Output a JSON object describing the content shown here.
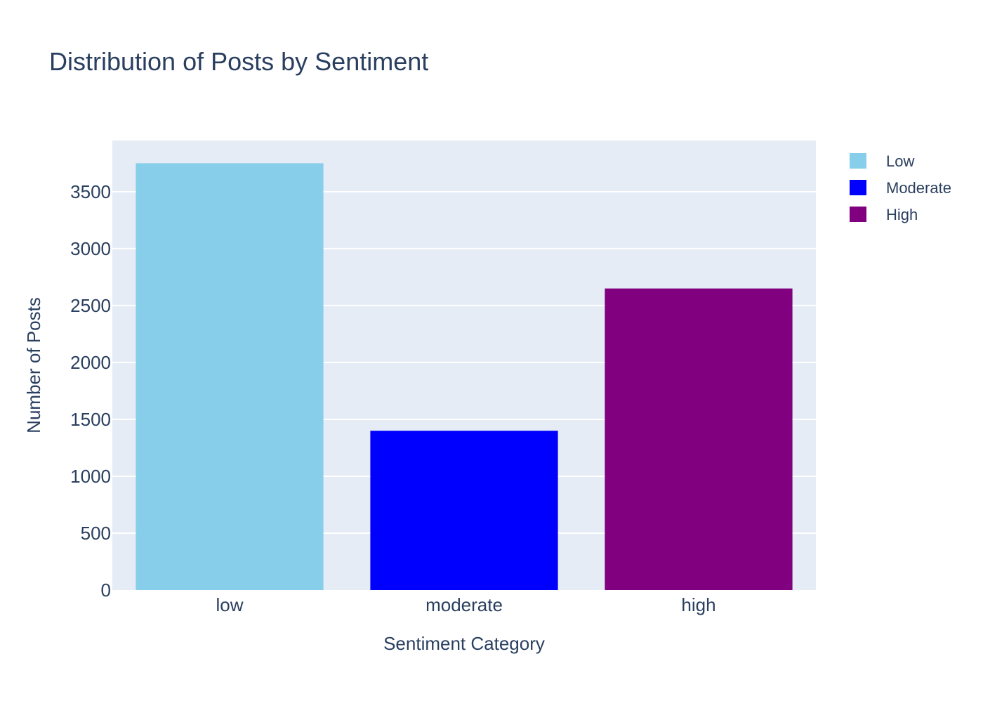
{
  "chart_data": {
    "type": "bar",
    "title": "Distribution of Posts by Sentiment",
    "xlabel": "Sentiment Category",
    "ylabel": "Number of Posts",
    "categories": [
      "low",
      "moderate",
      "high"
    ],
    "values": [
      3750,
      1400,
      2650
    ],
    "bar_colors": [
      "#87ceeb",
      "#0000ff",
      "#800080"
    ],
    "ylim": [
      0,
      3950
    ],
    "yticks": [
      0,
      500,
      1000,
      1500,
      2000,
      2500,
      3000,
      3500
    ],
    "grid": true,
    "plot_background": "#e5ecf6",
    "text_color": "#2a3f5f",
    "legend": {
      "placement": "top-right",
      "entries": [
        {
          "label": "Low",
          "color": "#87ceeb"
        },
        {
          "label": "Moderate",
          "color": "#0000ff"
        },
        {
          "label": "High",
          "color": "#800080"
        }
      ]
    }
  }
}
